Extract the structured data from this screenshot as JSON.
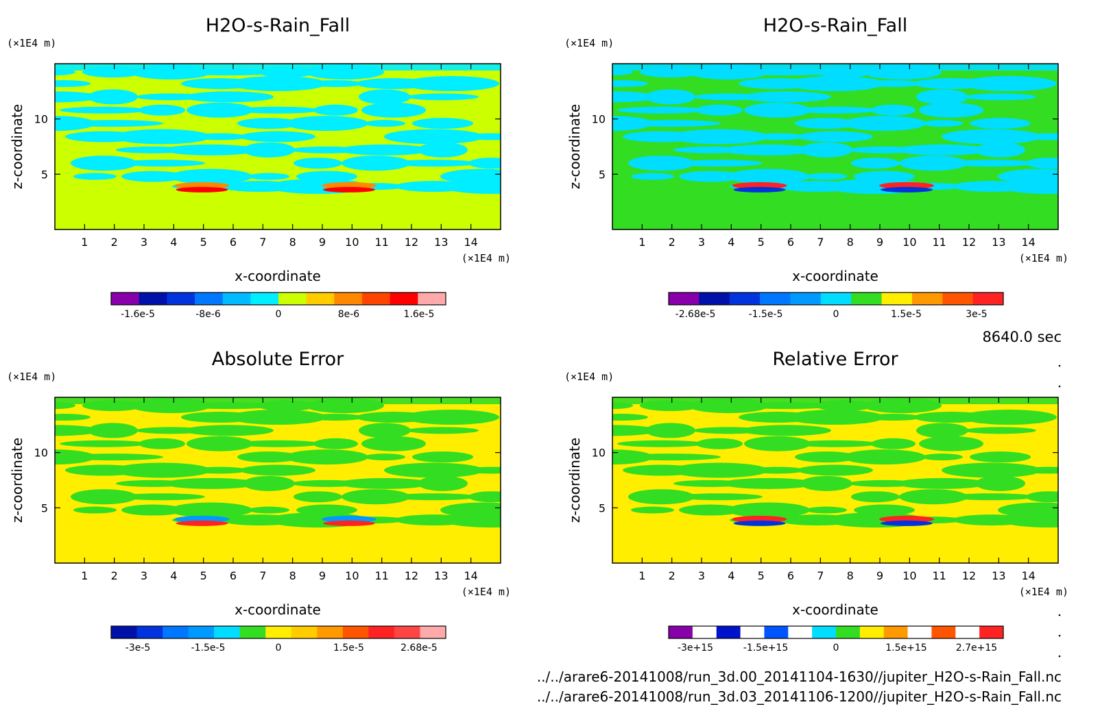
{
  "time_label": "8640.0 sec",
  "files": [
    "../../arare6-20141008/run_3d.00_20141104-1630//jupiter_H2O-s-Rain_Fall.nc",
    "../../arare6-20141008/run_3d.03_20141106-1200//jupiter_H2O-s-Rain_Fall.nc"
  ],
  "chart_data": [
    {
      "type": "heatmap",
      "title": "H2O-s-Rain_Fall",
      "xlabel": "x-coordinate",
      "ylabel": "z-coordinate",
      "x_unit": "(×1E4 m)",
      "y_unit": "(×1E4 m)",
      "xlim": [
        0,
        15
      ],
      "ylim": [
        0,
        15
      ],
      "x_ticks": [
        1,
        2,
        3,
        4,
        5,
        6,
        7,
        8,
        9,
        10,
        11,
        12,
        13,
        14
      ],
      "y_ticks": [
        5,
        10
      ],
      "colorbar": {
        "colors": [
          "#8800aa",
          "#0011aa",
          "#0033dd",
          "#0077ff",
          "#00bbff",
          "#00eeff",
          "#ccff00",
          "#ffcc00",
          "#ff8800",
          "#ff4400",
          "#ff0000",
          "#ffaaaa"
        ],
        "tick_labels": [
          "-1.6e-5",
          "-8e-6",
          "0",
          "8e-6",
          "1.6e-5"
        ]
      },
      "background": "#ccff00",
      "dominant_colors": [
        "#ccff00",
        "#00eeff",
        "#ff8800",
        "#ff0000"
      ]
    },
    {
      "type": "heatmap",
      "title": "H2O-s-Rain_Fall",
      "xlabel": "x-coordinate",
      "ylabel": "z-coordinate",
      "x_unit": "(×1E4 m)",
      "y_unit": "(×1E4 m)",
      "xlim": [
        0,
        15
      ],
      "ylim": [
        0,
        15
      ],
      "x_ticks": [
        1,
        2,
        3,
        4,
        5,
        6,
        7,
        8,
        9,
        10,
        11,
        12,
        13,
        14
      ],
      "y_ticks": [
        5,
        10
      ],
      "colorbar": {
        "colors": [
          "#8800aa",
          "#0011aa",
          "#0033dd",
          "#0077ff",
          "#0099ff",
          "#00ddff",
          "#33dd22",
          "#ffee00",
          "#ff9900",
          "#ff5500",
          "#ff2222"
        ],
        "tick_labels": [
          "-2.68e-5",
          "-1.5e-5",
          "0",
          "1.5e-5",
          "3e-5"
        ]
      },
      "background": "#33dd22",
      "dominant_colors": [
        "#33dd22",
        "#00ddff",
        "#ff2222",
        "#0033dd"
      ]
    },
    {
      "type": "heatmap",
      "title": "Absolute Error",
      "xlabel": "x-coordinate",
      "ylabel": "z-coordinate",
      "x_unit": "(×1E4 m)",
      "y_unit": "(×1E4 m)",
      "xlim": [
        0,
        15
      ],
      "ylim": [
        0,
        15
      ],
      "x_ticks": [
        1,
        2,
        3,
        4,
        5,
        6,
        7,
        8,
        9,
        10,
        11,
        12,
        13,
        14
      ],
      "y_ticks": [
        5,
        10
      ],
      "colorbar": {
        "colors": [
          "#0011aa",
          "#0033dd",
          "#0077ff",
          "#0099ff",
          "#00ddff",
          "#33dd22",
          "#ffee00",
          "#ffcc00",
          "#ff9900",
          "#ff5500",
          "#ff2222",
          "#ff4444",
          "#ffaaaa"
        ],
        "tick_labels": [
          "-3e-5",
          "-1.5e-5",
          "0",
          "1.5e-5",
          "2.68e-5"
        ]
      },
      "background": "#ffee00",
      "dominant_colors": [
        "#ffee00",
        "#33dd22",
        "#0099ff",
        "#ff2222"
      ]
    },
    {
      "type": "heatmap",
      "title": "Relative Error",
      "xlabel": "x-coordinate",
      "ylabel": "z-coordinate",
      "x_unit": "(×1E4 m)",
      "y_unit": "(×1E4 m)",
      "xlim": [
        0,
        15
      ],
      "ylim": [
        0,
        15
      ],
      "x_ticks": [
        1,
        2,
        3,
        4,
        5,
        6,
        7,
        8,
        9,
        10,
        11,
        12,
        13,
        14
      ],
      "y_ticks": [
        5,
        10
      ],
      "colorbar": {
        "colors": [
          "#8800aa",
          "#ffffff",
          "#0011cc",
          "#ffffff",
          "#0055ff",
          "#ffffff",
          "#00ddff",
          "#33dd22",
          "#ffee00",
          "#ff9900",
          "#ffffff",
          "#ff5500",
          "#ffffff",
          "#ff2222"
        ],
        "tick_labels": [
          "-3e+15",
          "-1.5e+15",
          "0",
          "1.5e+15",
          "2.7e+15"
        ]
      },
      "background": "#ffee00",
      "dominant_colors": [
        "#ffee00",
        "#33dd22",
        "#ff2222",
        "#0033dd"
      ]
    }
  ]
}
